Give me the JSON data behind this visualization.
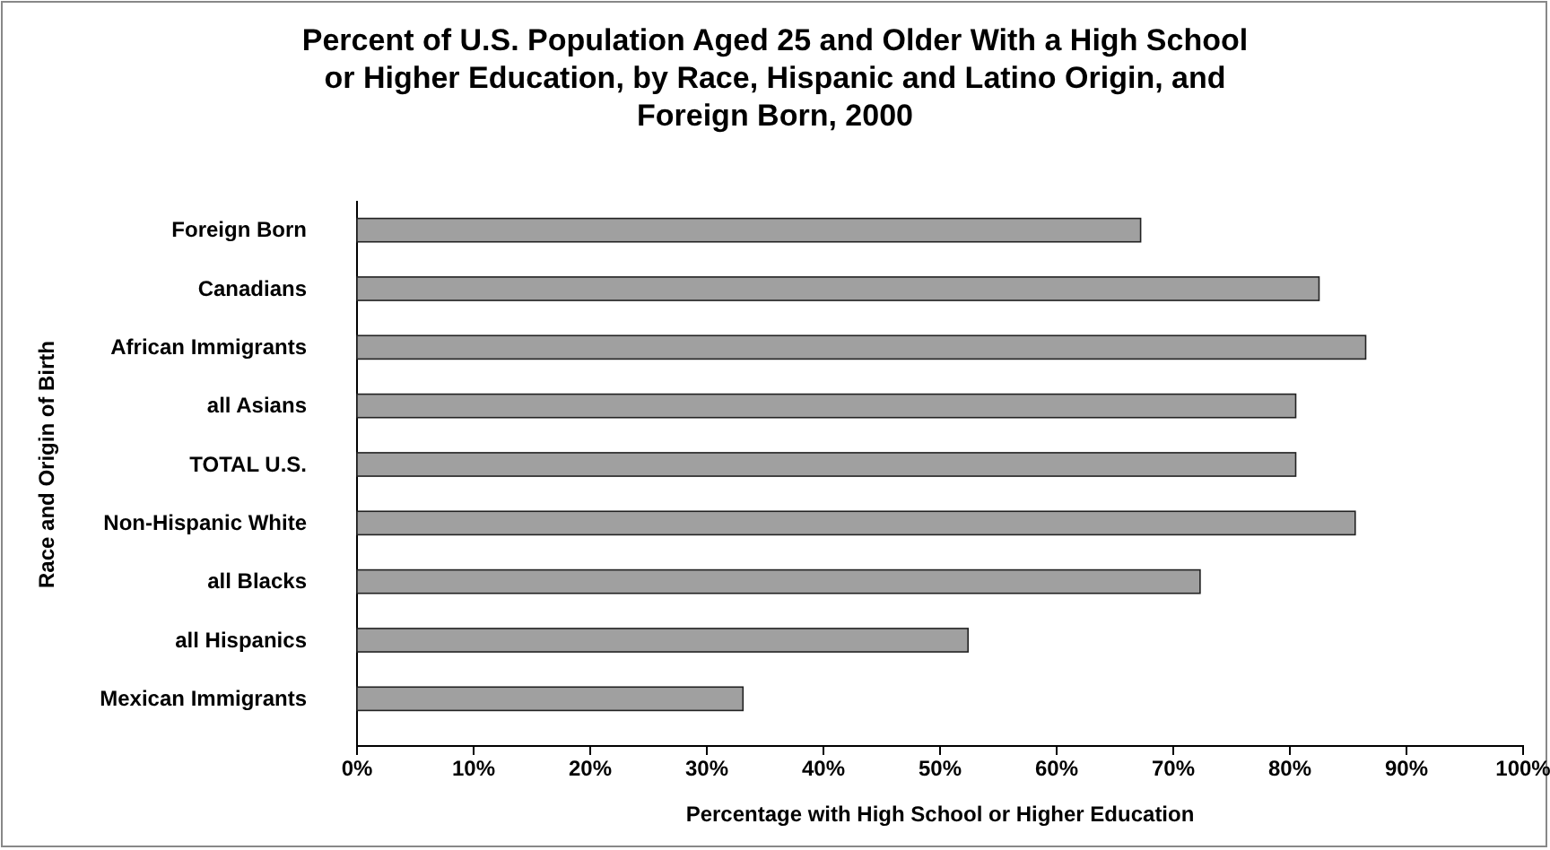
{
  "chart_data": {
    "type": "bar",
    "orientation": "horizontal",
    "title": "Percent of U.S. Population Aged 25 and Older With a High School or Higher Education, by Race, Hispanic and Latino Origin, and Foreign Born, 2000",
    "xlabel": "Percentage with High School or Higher Education",
    "ylabel": "Race and Origin of Birth",
    "categories": [
      "Foreign Born",
      "Canadians",
      "African Immigrants",
      "all Asians",
      "TOTAL U.S.",
      "Non-Hispanic White",
      "all  Blacks",
      "all Hispanics",
      "Mexican Immigrants"
    ],
    "values": [
      67.2,
      82.5,
      86.5,
      80.5,
      80.5,
      85.6,
      72.3,
      52.4,
      33.1
    ],
    "color": "#a0a0a0",
    "xlim": [
      0,
      100
    ],
    "xticks": [
      {
        "value": 0,
        "label": "0%"
      },
      {
        "value": 10,
        "label": "10%"
      },
      {
        "value": 20,
        "label": "20%"
      },
      {
        "value": 30,
        "label": "30%"
      },
      {
        "value": 40,
        "label": "40%"
      },
      {
        "value": 50,
        "label": "50%"
      },
      {
        "value": 60,
        "label": "60%"
      },
      {
        "value": 70,
        "label": "70%"
      },
      {
        "value": 80,
        "label": "80%"
      },
      {
        "value": 90,
        "label": "90%"
      },
      {
        "value": 100,
        "label": "100%"
      }
    ],
    "grid": false
  }
}
